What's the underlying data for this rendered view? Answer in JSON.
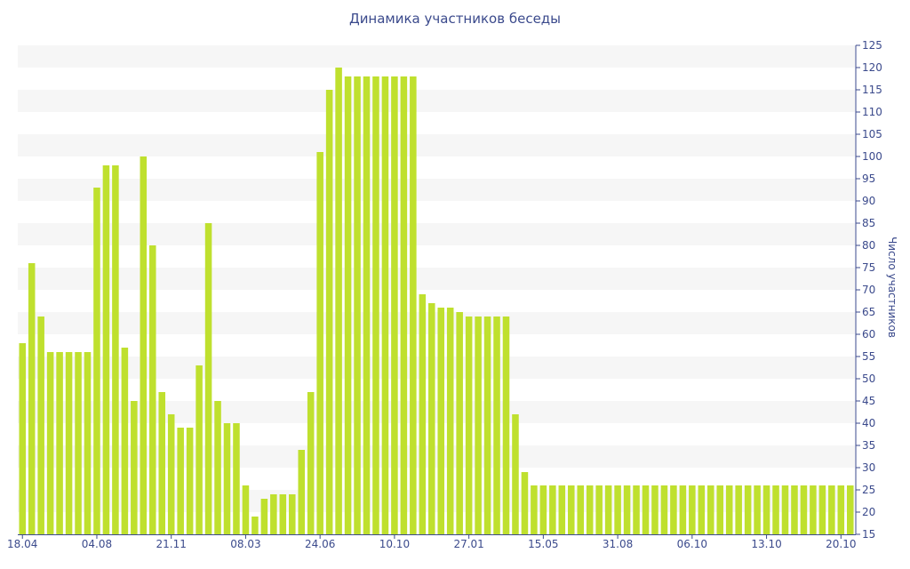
{
  "chart_data": {
    "type": "bar",
    "title": "Динамика участников беседы",
    "ylabel": "Число участников",
    "xlabel": "",
    "ylim": [
      15,
      125
    ],
    "ytick_step": 5,
    "y_axis_position": "right",
    "grid": "alternating horizontal bands",
    "bar_color": "#bfe02e",
    "band_color": "#f6f6f6",
    "text_color": "#3b4a8c",
    "x_tick_labels": [
      "18.04",
      "04.08",
      "21.11",
      "08.03",
      "24.06",
      "10.10",
      "27.01",
      "15.05",
      "31.08",
      "06.10",
      "13.10",
      "20.10"
    ],
    "x_tick_bar_index": [
      0,
      8,
      16,
      24,
      32,
      40,
      48,
      56,
      64,
      72,
      80,
      88
    ],
    "values": [
      58,
      76,
      64,
      56,
      56,
      56,
      56,
      56,
      93,
      98,
      98,
      57,
      45,
      100,
      80,
      47,
      42,
      39,
      39,
      53,
      85,
      45,
      40,
      40,
      26,
      19,
      23,
      24,
      24,
      24,
      34,
      47,
      101,
      115,
      120,
      118,
      118,
      118,
      118,
      118,
      118,
      118,
      118,
      69,
      67,
      66,
      66,
      65,
      64,
      64,
      64,
      64,
      64,
      42,
      29,
      26,
      26,
      26,
      26,
      26,
      26,
      26,
      26,
      26,
      26,
      26,
      26,
      26,
      26,
      26,
      26,
      26,
      26,
      26,
      26,
      26,
      26,
      26,
      26,
      26,
      26,
      26,
      26,
      26,
      26,
      26,
      26,
      26,
      26,
      26
    ]
  }
}
